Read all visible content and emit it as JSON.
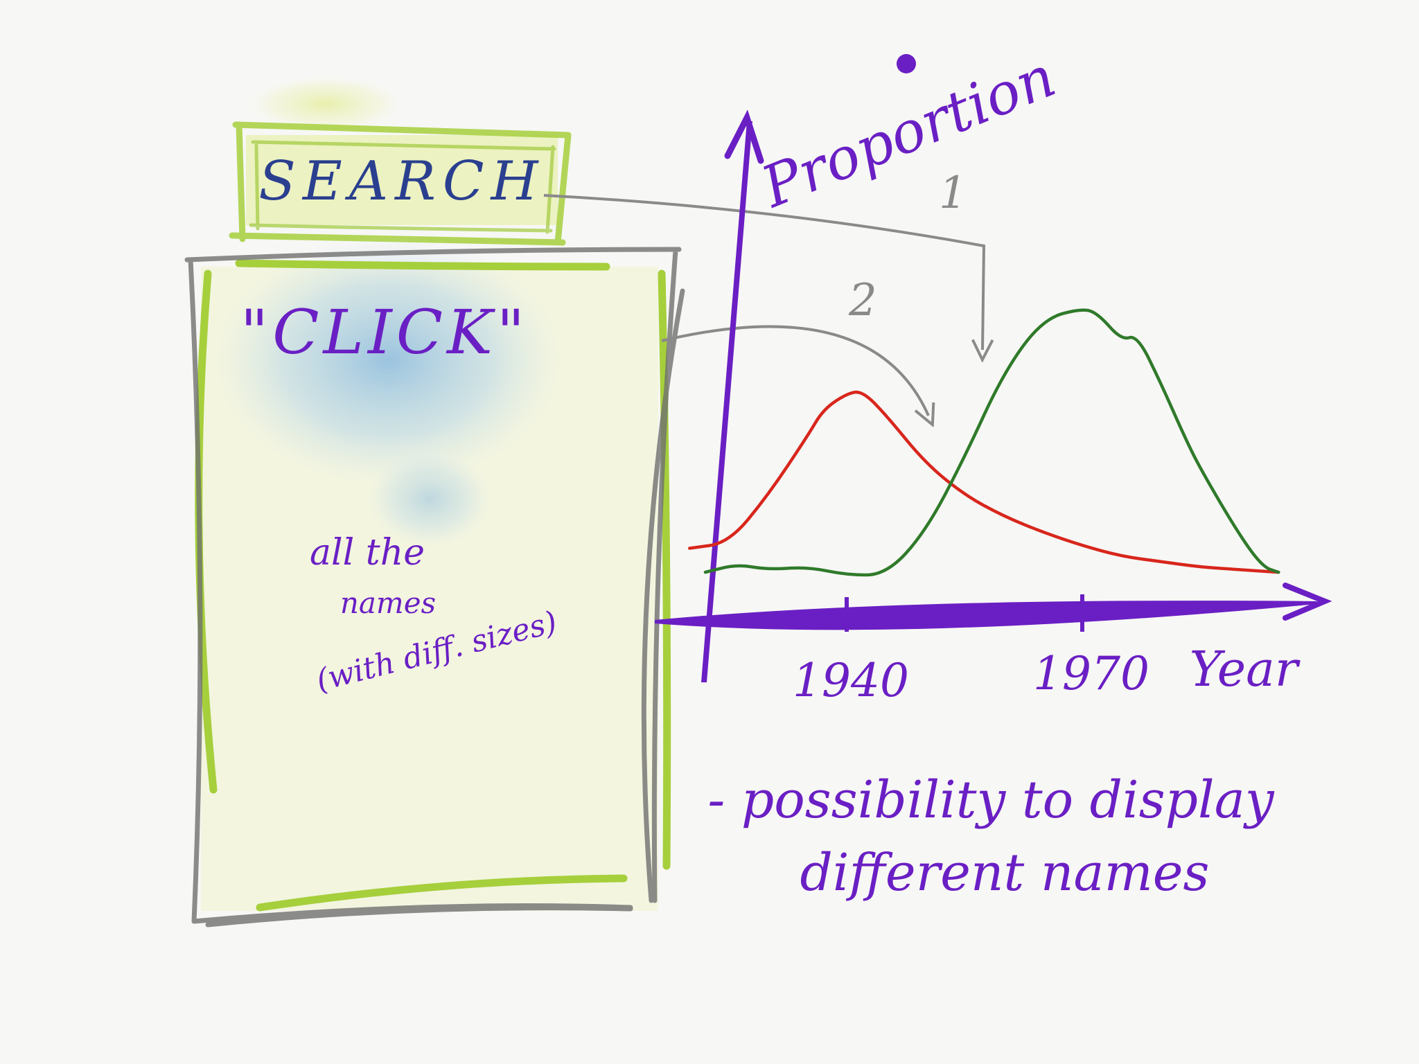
{
  "search": {
    "label": "SEARCH"
  },
  "names_panel": {
    "title": "\"CLICK\"",
    "note_line1": "all the",
    "note_line2": "names",
    "note_line3": "(with diff. sizes)"
  },
  "arrows": {
    "label_1": "1",
    "label_2": "2"
  },
  "chart": {
    "y_axis_label": "Proportion",
    "x_axis_label": "Year",
    "tick_labels": [
      "1940",
      "1970"
    ]
  },
  "note": {
    "line1": "- possibility to display",
    "line2": "different names"
  },
  "colors": {
    "ink_purple": "#6a1fc4",
    "ink_blue": "#2a3f8f",
    "panel_green": "#a6cf3c",
    "panel_gray": "#6f6f6f",
    "arrow_gray": "#8a8a8a",
    "series_red": "#d8261c",
    "series_green": "#2f7a2a"
  },
  "chart_data": {
    "type": "line",
    "title": "",
    "xlabel": "Year",
    "ylabel": "Proportion",
    "x_ticks": [
      "1940",
      "1970"
    ],
    "series": [
      {
        "color": "#d8261c",
        "points": [
          [
            1920,
            0.1
          ],
          [
            1925,
            0.12
          ],
          [
            1930,
            0.3
          ],
          [
            1935,
            0.52
          ],
          [
            1937,
            0.62
          ],
          [
            1940,
            0.68
          ],
          [
            1942,
            0.69
          ],
          [
            1945,
            0.6
          ],
          [
            1950,
            0.42
          ],
          [
            1955,
            0.3
          ],
          [
            1960,
            0.22
          ],
          [
            1965,
            0.16
          ],
          [
            1970,
            0.11
          ],
          [
            1975,
            0.07
          ],
          [
            1980,
            0.05
          ],
          [
            1985,
            0.03
          ],
          [
            1990,
            0.02
          ],
          [
            1995,
            0.01
          ]
        ]
      },
      {
        "color": "#2f7a2a",
        "points": [
          [
            1922,
            0.01
          ],
          [
            1926,
            0.04
          ],
          [
            1930,
            0.02
          ],
          [
            1935,
            0.03
          ],
          [
            1940,
            0.0
          ],
          [
            1945,
            0.0
          ],
          [
            1950,
            0.16
          ],
          [
            1955,
            0.44
          ],
          [
            1960,
            0.76
          ],
          [
            1965,
            0.96
          ],
          [
            1970,
            1.0
          ],
          [
            1972,
            0.98
          ],
          [
            1975,
            0.88
          ],
          [
            1977,
            0.9
          ],
          [
            1980,
            0.72
          ],
          [
            1983,
            0.52
          ],
          [
            1985,
            0.4
          ],
          [
            1990,
            0.15
          ],
          [
            1993,
            0.03
          ],
          [
            1995,
            0.01
          ]
        ]
      }
    ]
  }
}
